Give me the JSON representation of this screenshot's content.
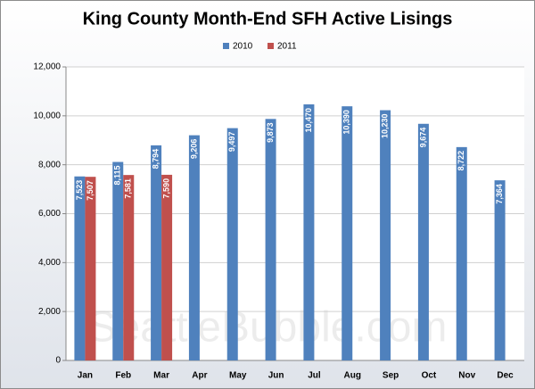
{
  "chart_data": {
    "type": "bar",
    "title": "King County Month-End SFH Active Lisings",
    "watermark": "SeattleBubble.com",
    "categories": [
      "Jan",
      "Feb",
      "Mar",
      "Apr",
      "May",
      "Jun",
      "Jul",
      "Aug",
      "Sep",
      "Oct",
      "Nov",
      "Dec"
    ],
    "series": [
      {
        "name": "2010",
        "color": "#4f81bd",
        "values": [
          7523,
          8115,
          8794,
          9206,
          9497,
          9873,
          10470,
          10390,
          10230,
          9674,
          8722,
          7364
        ],
        "value_labels": [
          "7,523",
          "8,115",
          "8,794",
          "9,206",
          "9,497",
          "9,873",
          "10,470",
          "10,390",
          "10,230",
          "9,674",
          "8,722",
          "7,364"
        ]
      },
      {
        "name": "2011",
        "color": "#c0504d",
        "values": [
          7507,
          7581,
          7590,
          null,
          null,
          null,
          null,
          null,
          null,
          null,
          null,
          null
        ],
        "value_labels": [
          "7,507",
          "7,581",
          "7,590",
          null,
          null,
          null,
          null,
          null,
          null,
          null,
          null,
          null
        ]
      }
    ],
    "ylim": [
      0,
      12000
    ],
    "yticks": [
      0,
      {
        "value": 2000,
        "label": "2,000"
      },
      {
        "value": 4000,
        "label": "4,000"
      },
      {
        "value": 6000,
        "label": "6,000"
      },
      {
        "value": 8000,
        "label": "8,000"
      },
      {
        "value": 10000,
        "label": "10,000"
      },
      {
        "value": 12000,
        "label": "12,000"
      }
    ],
    "grid": true,
    "legend": "top"
  }
}
